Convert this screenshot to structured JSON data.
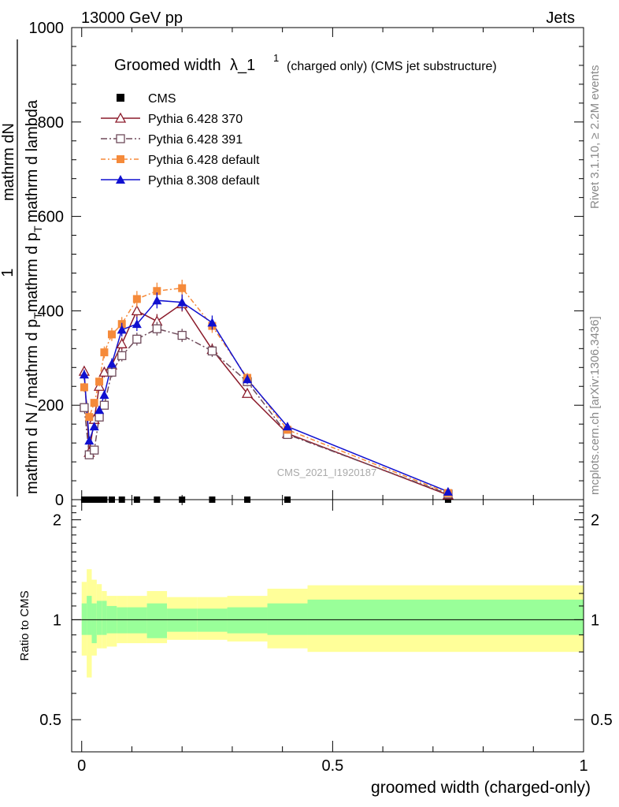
{
  "header": {
    "left": "13000 GeV pp",
    "right": "Jets"
  },
  "side": {
    "rivet": "Rivet 3.1.10, ≥ 2.2M events",
    "mcplots": "mcplots.cern.ch [arXiv:1306.3436]"
  },
  "watermark": "CMS_2021_I1920187",
  "colors": {
    "cms": "#000000",
    "py370": "#8b1a2a",
    "py391": "#6e4a5a",
    "py_default": "#f58a3a",
    "py8": "#1010d0",
    "band_inner": "#99ff99",
    "band_outer": "#ffff99"
  },
  "chart_data": [
    {
      "type": "line",
      "title": "Groomed width",
      "title_symbol": "λ_1",
      "title_sup": "1",
      "title_suffix": "(charged only) (CMS jet substructure)",
      "ylabel_numerator": "mathrm dN",
      "ylabel_parts": [
        "mathrm d N / mathrm d p",
        "T",
        "mathrm d p",
        "T",
        "mathrm d lambda"
      ],
      "ylabel_prefix": "1",
      "xlim": [
        -0.02,
        1.0
      ],
      "ylim": [
        0,
        1000
      ],
      "yticks": [
        0,
        200,
        400,
        600,
        800,
        1000
      ],
      "legend_position": "top-left",
      "series": [
        {
          "name": "CMS",
          "marker": "square-filled",
          "x": [
            0.005,
            0.015,
            0.025,
            0.035,
            0.045,
            0.06,
            0.08,
            0.11,
            0.15,
            0.2,
            0.26,
            0.33,
            0.41,
            0.73
          ],
          "y": [
            0,
            0,
            0,
            0,
            0,
            0,
            0,
            0,
            0,
            0,
            0,
            0,
            0,
            0
          ]
        },
        {
          "name": "Pythia 6.428 370",
          "marker": "triangle-open",
          "x": [
            0.005,
            0.015,
            0.025,
            0.035,
            0.045,
            0.06,
            0.08,
            0.11,
            0.15,
            0.2,
            0.26,
            0.33,
            0.41,
            0.73
          ],
          "y": [
            272,
            100,
            170,
            240,
            270,
            285,
            330,
            400,
            378,
            415,
            318,
            225,
            140,
            10
          ]
        },
        {
          "name": "Pythia 6.428 391",
          "marker": "square-open",
          "x": [
            0.005,
            0.015,
            0.025,
            0.035,
            0.045,
            0.06,
            0.08,
            0.11,
            0.15,
            0.2,
            0.26,
            0.33,
            0.41,
            0.73
          ],
          "y": [
            195,
            95,
            105,
            175,
            200,
            270,
            305,
            340,
            362,
            348,
            315,
            250,
            138,
            12
          ]
        },
        {
          "name": "Pythia 6.428 default",
          "marker": "square-filled",
          "x": [
            0.005,
            0.015,
            0.025,
            0.035,
            0.045,
            0.06,
            0.08,
            0.11,
            0.15,
            0.2,
            0.26,
            0.33,
            0.41,
            0.73
          ],
          "y": [
            238,
            175,
            205,
            250,
            312,
            350,
            372,
            425,
            442,
            448,
            368,
            258,
            148,
            14
          ]
        },
        {
          "name": "Pythia 8.308 default",
          "marker": "triangle-filled",
          "x": [
            0.005,
            0.015,
            0.025,
            0.035,
            0.045,
            0.06,
            0.08,
            0.11,
            0.15,
            0.2,
            0.26,
            0.33,
            0.41,
            0.73
          ],
          "y": [
            265,
            125,
            155,
            190,
            222,
            288,
            360,
            372,
            422,
            418,
            375,
            255,
            155,
            17
          ]
        }
      ]
    },
    {
      "type": "area",
      "xlabel": "groomed width (charged-only)",
      "ylabel": "Ratio to CMS",
      "xlim": [
        -0.02,
        1.0
      ],
      "ylim": [
        0.4,
        2.3
      ],
      "ylog": true,
      "yticks": [
        0.5,
        1,
        2
      ],
      "xticks": [
        0,
        0.5,
        1
      ],
      "reference": 1,
      "bins": [
        0,
        0.01,
        0.02,
        0.03,
        0.04,
        0.05,
        0.07,
        0.09,
        0.13,
        0.17,
        0.23,
        0.29,
        0.37,
        0.45,
        1.0
      ],
      "inner_lo": [
        0.9,
        0.9,
        0.85,
        0.9,
        0.9,
        0.91,
        0.91,
        0.91,
        0.88,
        0.92,
        0.92,
        0.91,
        0.9,
        0.9
      ],
      "inner_hi": [
        1.12,
        1.18,
        1.12,
        1.14,
        1.14,
        1.1,
        1.09,
        1.09,
        1.12,
        1.08,
        1.08,
        1.09,
        1.12,
        1.15
      ],
      "outer_lo": [
        0.78,
        0.67,
        0.78,
        0.82,
        0.82,
        0.83,
        0.85,
        0.85,
        0.85,
        0.87,
        0.87,
        0.86,
        0.82,
        0.8
      ],
      "outer_hi": [
        1.3,
        1.42,
        1.32,
        1.28,
        1.22,
        1.18,
        1.18,
        1.18,
        1.22,
        1.17,
        1.17,
        1.18,
        1.24,
        1.27
      ]
    }
  ]
}
